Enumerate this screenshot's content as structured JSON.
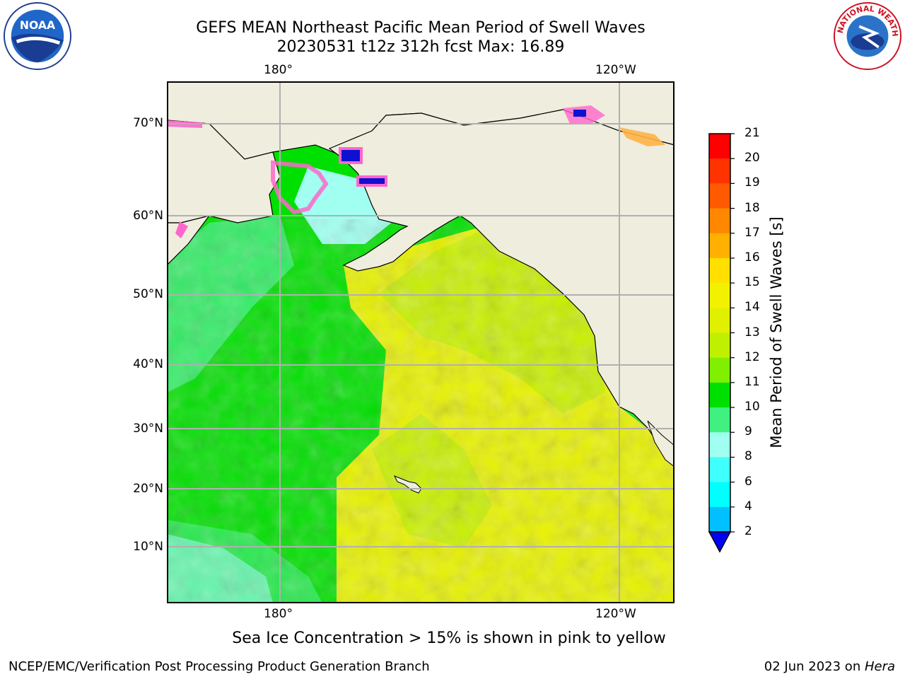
{
  "title": {
    "line1": "GEFS MEAN Northeast Pacific Mean Period of Swell Waves",
    "line2": "20230531 t12z 312h fcst   Max: 16.89"
  },
  "map": {
    "lon_labels_top": [
      "180°",
      "120°W"
    ],
    "lon_labels_bottom": [
      "180°",
      "120°W"
    ],
    "lat_labels": [
      "70°N",
      "60°N",
      "50°N",
      "40°N",
      "30°N",
      "20°N",
      "10°N"
    ],
    "colors": {
      "land": "#efedde",
      "coast": "#000000",
      "grid": "#b0b0b0",
      "ice_pink": "#ff66cc",
      "ice_orange": "#ffb347"
    }
  },
  "colorbar": {
    "label": "Mean Period of Swell Waves [s]",
    "ticks": [
      "21",
      "20",
      "19",
      "18",
      "17",
      "16",
      "15",
      "14",
      "13",
      "12",
      "11",
      "10",
      "9",
      "8",
      "6",
      "4",
      "2"
    ],
    "colors": [
      "#ff0000",
      "#ff3300",
      "#ff5a00",
      "#ff8800",
      "#ffb000",
      "#ffe000",
      "#f2f200",
      "#e0f000",
      "#c0f000",
      "#80f000",
      "#00e000",
      "#40f080",
      "#a0fff0",
      "#40ffff",
      "#00ffff",
      "#00c0ff",
      "#0060ff"
    ],
    "extend_color": "#0000ff"
  },
  "chart_data": {
    "type": "heatmap",
    "title": "GEFS MEAN Northeast Pacific Mean Period of Swell Waves",
    "subtitle": "20230531 t12z 312h fcst   Max: 16.89",
    "colorbar_label": "Mean Period of Swell Waves [s]",
    "colorbar_levels": [
      2,
      4,
      6,
      8,
      9,
      10,
      11,
      12,
      13,
      14,
      15,
      16,
      17,
      18,
      19,
      20,
      21
    ],
    "max": 16.89,
    "units": "s"
  },
  "footer": {
    "note": "Sea Ice Concentration > 15% is shown in pink to yellow",
    "credit": "NCEP/EMC/Verification Post Processing Product Generation Branch",
    "date_prefix": "02 Jun 2023 on ",
    "date_machine": "Hera"
  },
  "logos": {
    "noaa_text": "NOAA",
    "nws_text": "NATIONAL WEATHER SERVICE"
  }
}
